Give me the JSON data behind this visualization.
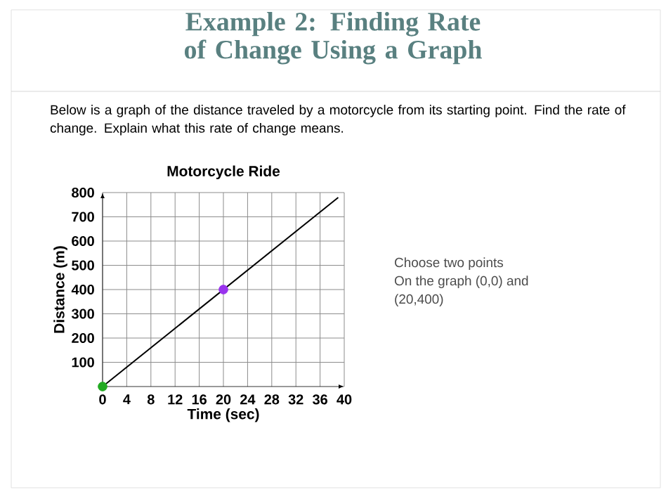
{
  "chart_data": {
    "type": "line",
    "title": "Motorcycle Ride",
    "xlabel": "Time (sec)",
    "ylabel": "Distance (m)",
    "series": [
      {
        "color": "#000000",
        "x": [
          0,
          39
        ],
        "values": [
          0,
          780
        ]
      },
      {
        "type": "scatter",
        "x": [
          0,
          20
        ],
        "values": [
          0,
          400
        ],
        "colors": [
          "#22aa22",
          "#9933ee"
        ],
        "marker": "circle"
      }
    ],
    "xlim": [
      0,
      40
    ],
    "xticks": [
      0,
      4,
      8,
      12,
      16,
      20,
      24,
      28,
      32,
      36,
      40
    ],
    "ylim": [
      0,
      800
    ],
    "yticks": [
      100,
      200,
      300,
      400,
      500,
      600,
      700,
      800
    ],
    "grid": true,
    "annotations": [
      "Example 2: Finding Rate of Change Using a Graph",
      "Below is a graph of the distance traveled by a motorcycle from its starting point. Find the rate of change. Explain what this rate of change means.",
      "Choose two points",
      "On the graph (0,0) and",
      "(20,400)"
    ]
  }
}
